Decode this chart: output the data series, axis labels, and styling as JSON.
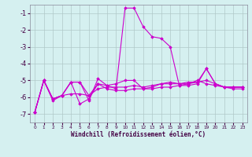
{
  "xlabel": "Windchill (Refroidissement éolien,°C)",
  "background_color": "#d5f0f0",
  "grid_color": "#b0c8c8",
  "line_color": "#cc00cc",
  "xlim": [
    -0.5,
    23.5
  ],
  "ylim": [
    -7.5,
    -0.5
  ],
  "yticks": [
    -7,
    -6,
    -5,
    -4,
    -3,
    -2,
    -1
  ],
  "xtick_labels": [
    "0",
    "1",
    "2",
    "3",
    "4",
    "5",
    "6",
    "7",
    "8",
    "9",
    "10",
    "11",
    "12",
    "13",
    "14",
    "15",
    "16",
    "17",
    "18",
    "19",
    "20",
    "21",
    "22",
    "23"
  ],
  "series": [
    [
      -6.9,
      -5.0,
      -6.2,
      -5.9,
      -5.1,
      -5.1,
      -6.2,
      -4.9,
      -5.3,
      -5.5,
      -0.7,
      -0.7,
      -1.8,
      -2.4,
      -2.5,
      -3.0,
      -5.3,
      -5.3,
      -5.2,
      -4.3,
      -5.2,
      -5.4,
      -5.4,
      -5.4
    ],
    [
      -6.9,
      -5.0,
      -6.1,
      -5.9,
      -5.8,
      -5.8,
      -5.9,
      -5.2,
      -5.5,
      -5.6,
      -5.6,
      -5.5,
      -5.5,
      -5.5,
      -5.4,
      -5.4,
      -5.3,
      -5.2,
      -5.1,
      -5.0,
      -5.2,
      -5.4,
      -5.4,
      -5.4
    ],
    [
      -6.9,
      -5.0,
      -6.1,
      -5.9,
      -5.1,
      -6.4,
      -6.1,
      -5.2,
      -5.3,
      -5.2,
      -5.0,
      -5.0,
      -5.5,
      -5.4,
      -5.2,
      -5.1,
      -5.2,
      -5.2,
      -5.0,
      -5.2,
      -5.3,
      -5.4,
      -5.5,
      -5.5
    ],
    [
      -6.9,
      -5.0,
      -6.1,
      -5.9,
      -5.1,
      -5.1,
      -5.9,
      -5.5,
      -5.4,
      -5.4,
      -5.4,
      -5.3,
      -5.4,
      -5.3,
      -5.2,
      -5.2,
      -5.2,
      -5.1,
      -5.1,
      -4.3,
      -5.2,
      -5.4,
      -5.4,
      -5.4
    ]
  ],
  "marker": "D",
  "markersize": 1.8,
  "linewidth": 0.8,
  "tick_color": "#440044",
  "xlabel_fontsize": 5.5,
  "xlabel_fontweight": "bold",
  "ytick_fontsize": 6.0,
  "xtick_fontsize": 4.2
}
